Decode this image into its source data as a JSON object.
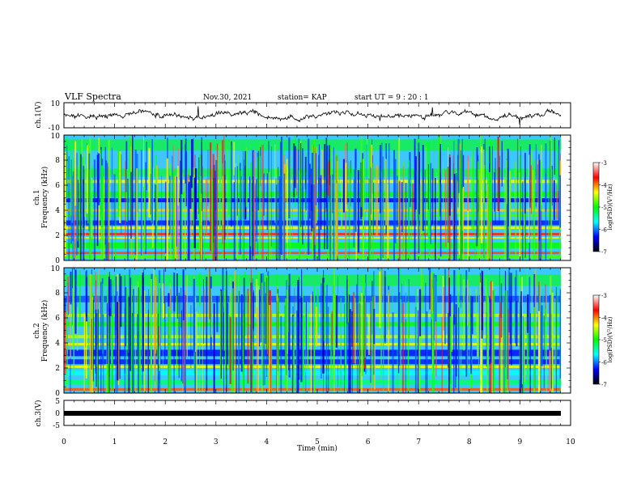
{
  "header": {
    "title": "VLF Spectra",
    "date": "Nov.30, 2021",
    "station": "station= KAP",
    "start": "start  UT =   9 : 20 : 1"
  },
  "chart_data": [
    {
      "type": "line",
      "name": "ch1-waveform",
      "ylabel": "ch.1(V)",
      "ylim": [
        -10,
        10
      ],
      "yticks": [
        "10",
        "-10"
      ],
      "xlim": [
        0,
        10
      ]
    },
    {
      "type": "heatmap",
      "name": "ch1-spectrogram",
      "ylabel_line1": "ch.1",
      "ylabel_line2": "Frequency (kHz)",
      "ylim": [
        0,
        10
      ],
      "yticks": [
        "0",
        "2",
        "4",
        "6",
        "8",
        "10"
      ],
      "xlim": [
        0,
        10
      ],
      "colorbar": {
        "label": "log(PSD)(V²/Hz)",
        "range": [
          -7,
          -3
        ],
        "ticks": [
          "-3",
          "-4",
          "-5",
          "-6",
          "-7"
        ],
        "colormap": [
          "#ffffff",
          "#ff0000",
          "#ffff00",
          "#00ff00",
          "#00ffff",
          "#0000ff",
          "#000000"
        ]
      }
    },
    {
      "type": "heatmap",
      "name": "ch2-spectrogram",
      "ylabel_line1": "ch.2",
      "ylabel_line2": "Frequency (kHz)",
      "ylim": [
        0,
        10
      ],
      "yticks": [
        "0",
        "2",
        "4",
        "6",
        "8",
        "10"
      ],
      "xlim": [
        0,
        10
      ],
      "colorbar": {
        "label": "log(PSD)(V²/Hz)",
        "range": [
          -7,
          -3
        ],
        "ticks": [
          "-3",
          "-4",
          "-5",
          "-6",
          "-7"
        ],
        "colormap": [
          "#ffffff",
          "#ff0000",
          "#ffff00",
          "#00ff00",
          "#00ffff",
          "#0000ff",
          "#000000"
        ]
      }
    },
    {
      "type": "line",
      "name": "ch3-waveform",
      "ylabel": "ch.3(V)",
      "ylim": [
        -5,
        5
      ],
      "yticks": [
        "5",
        "0",
        "-5"
      ],
      "xlim": [
        0,
        10
      ],
      "xlabel": "Time (min)",
      "xticks": [
        "0",
        "1",
        "2",
        "3",
        "4",
        "5",
        "6",
        "7",
        "8",
        "9",
        "10"
      ]
    }
  ]
}
